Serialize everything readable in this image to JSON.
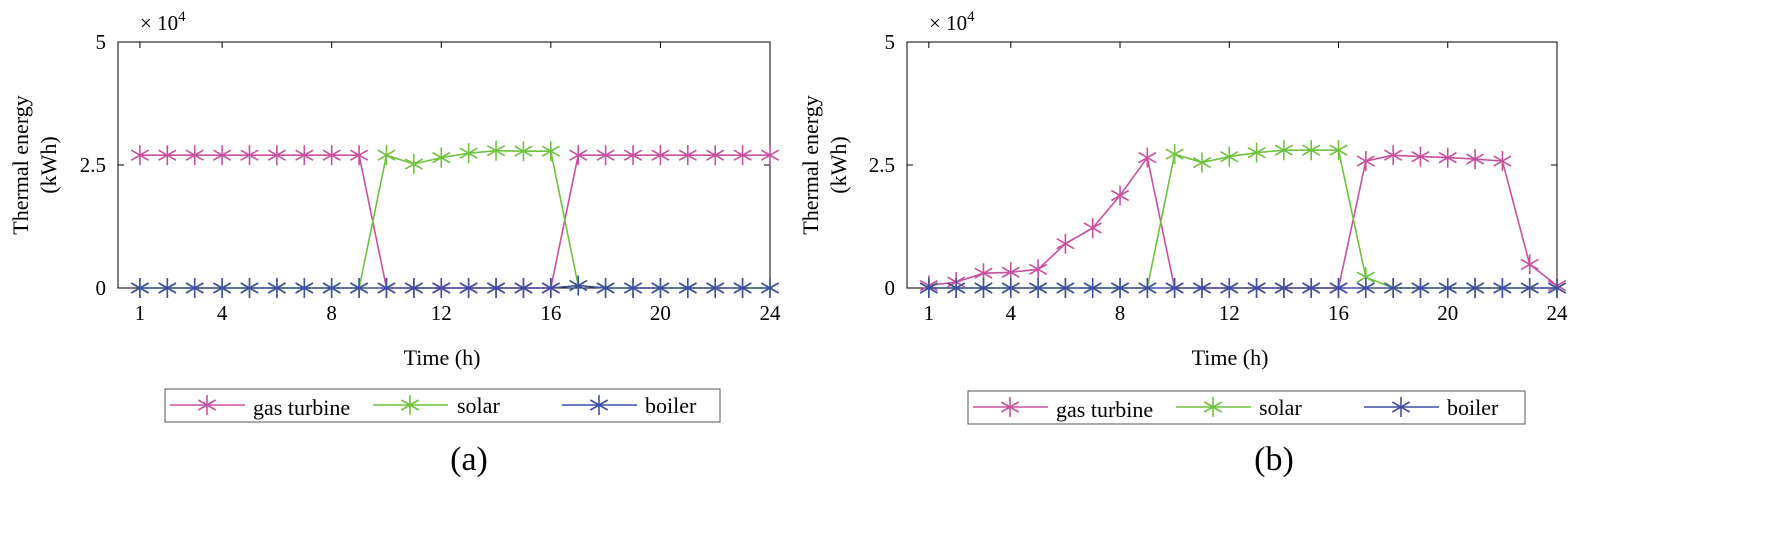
{
  "chart_data": [
    {
      "type": "line",
      "panel_label": "(a)",
      "xlabel": "Time (h)",
      "ylabel_line1": "Thermal energy",
      "ylabel_line2": "(kWh)",
      "exponent_label": "× 10",
      "exponent_power": "4",
      "xlim": [
        0.2,
        24
      ],
      "ylim": [
        0,
        5
      ],
      "xticks": [
        1,
        4,
        8,
        12,
        16,
        20,
        24
      ],
      "xtick_labels": [
        "1",
        "4",
        "8",
        "12",
        "16",
        "20",
        "24"
      ],
      "yticks": [
        0,
        2.5,
        5
      ],
      "ytick_labels": [
        "0",
        "2.5",
        "5"
      ],
      "grid": false,
      "legend_position": "bottom-outside",
      "x": [
        1,
        2,
        3,
        4,
        5,
        6,
        7,
        8,
        9,
        10,
        11,
        12,
        13,
        14,
        15,
        16,
        17,
        18,
        19,
        20,
        21,
        22,
        23,
        24
      ],
      "series": [
        {
          "name": "gas turbine",
          "color": "#c8509e",
          "values": [
            2.7,
            2.7,
            2.7,
            2.7,
            2.7,
            2.7,
            2.7,
            2.7,
            2.7,
            0,
            0,
            0,
            0,
            0,
            0,
            0,
            2.7,
            2.7,
            2.7,
            2.7,
            2.7,
            2.7,
            2.7,
            2.7
          ]
        },
        {
          "name": "solar",
          "color": "#6fc23e",
          "values": [
            0,
            0,
            0,
            0,
            0,
            0,
            0,
            0,
            0,
            2.7,
            2.52,
            2.65,
            2.74,
            2.79,
            2.78,
            2.78,
            0.05,
            0,
            0,
            0,
            0,
            0,
            0,
            0
          ]
        },
        {
          "name": "boiler",
          "color": "#3f4fa3",
          "values": [
            0,
            0,
            0,
            0,
            0,
            0,
            0,
            0,
            0,
            0,
            0,
            0,
            0,
            0,
            0,
            0,
            0.05,
            0,
            0,
            0,
            0,
            0,
            0,
            0
          ]
        }
      ]
    },
    {
      "type": "line",
      "panel_label": "(b)",
      "xlabel": "Time (h)",
      "ylabel_line1": "Thermal energy",
      "ylabel_line2": "(kWh)",
      "exponent_label": "× 10",
      "exponent_power": "4",
      "xlim": [
        0.2,
        24
      ],
      "ylim": [
        0,
        5
      ],
      "xticks": [
        1,
        4,
        8,
        12,
        16,
        20,
        24
      ],
      "xtick_labels": [
        "1",
        "4",
        "8",
        "12",
        "16",
        "20",
        "24"
      ],
      "yticks": [
        0,
        2.5,
        5
      ],
      "ytick_labels": [
        "0",
        "2.5",
        "5"
      ],
      "grid": false,
      "legend_position": "bottom-outside",
      "x": [
        1,
        2,
        3,
        4,
        5,
        6,
        7,
        8,
        9,
        10,
        11,
        12,
        13,
        14,
        15,
        16,
        17,
        18,
        19,
        20,
        21,
        22,
        23,
        24
      ],
      "series": [
        {
          "name": "gas turbine",
          "color": "#c8509e",
          "values": [
            0.05,
            0.12,
            0.3,
            0.32,
            0.38,
            0.9,
            1.22,
            1.88,
            2.65,
            0,
            0,
            0,
            0,
            0,
            0,
            0,
            2.58,
            2.7,
            2.67,
            2.65,
            2.62,
            2.58,
            0.48,
            0.05
          ]
        },
        {
          "name": "solar",
          "color": "#6fc23e",
          "values": [
            0,
            0,
            0,
            0,
            0,
            0,
            0,
            0,
            0,
            2.72,
            2.55,
            2.67,
            2.75,
            2.8,
            2.8,
            2.8,
            0.22,
            0,
            0,
            0,
            0,
            0,
            0,
            0
          ]
        },
        {
          "name": "boiler",
          "color": "#3f4fa3",
          "values": [
            0,
            0,
            0,
            0,
            0,
            0,
            0,
            0,
            0,
            0,
            0,
            0,
            0,
            0,
            0,
            0,
            0,
            0,
            0,
            0,
            0,
            0,
            0,
            0
          ]
        }
      ]
    }
  ]
}
